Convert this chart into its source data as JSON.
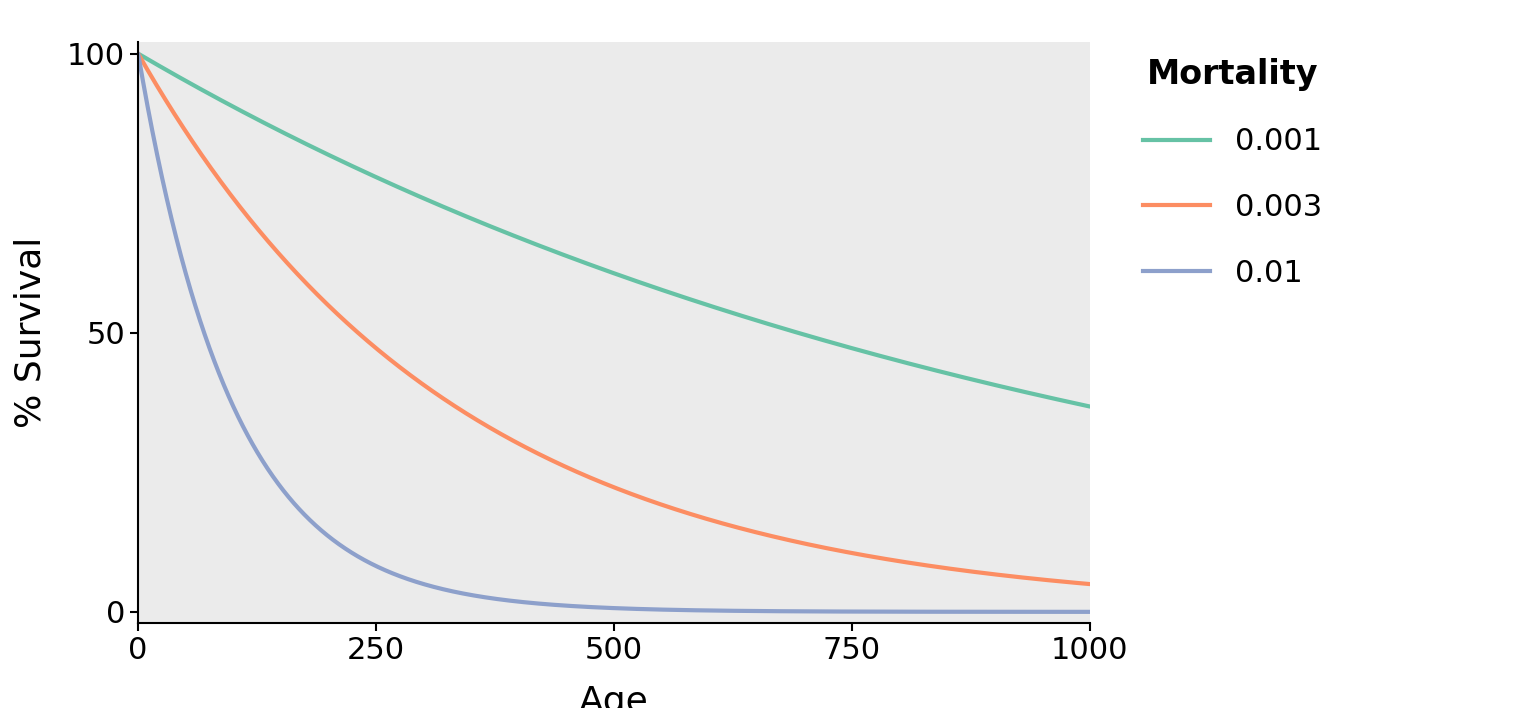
{
  "title": "",
  "xlabel": "Age",
  "ylabel": "% Survival",
  "xlim": [
    0,
    1000
  ],
  "ylim": [
    -2,
    102
  ],
  "xticks": [
    0,
    250,
    500,
    750,
    1000
  ],
  "yticks": [
    0,
    50,
    100
  ],
  "mortality_rates": [
    0.001,
    0.003,
    0.01
  ],
  "mortality_labels": [
    "0.001",
    "0.003",
    "0.01"
  ],
  "line_colors": [
    "#66C2A5",
    "#FC8D62",
    "#8DA0CB"
  ],
  "line_width": 3.0,
  "legend_title": "Mortality",
  "background_color": "#ffffff",
  "panel_background": "#ebebeb",
  "age_max": 1000,
  "age_points": 2000,
  "tick_labelsize": 22,
  "axis_labelsize": 26,
  "legend_title_fontsize": 24,
  "legend_fontsize": 22
}
